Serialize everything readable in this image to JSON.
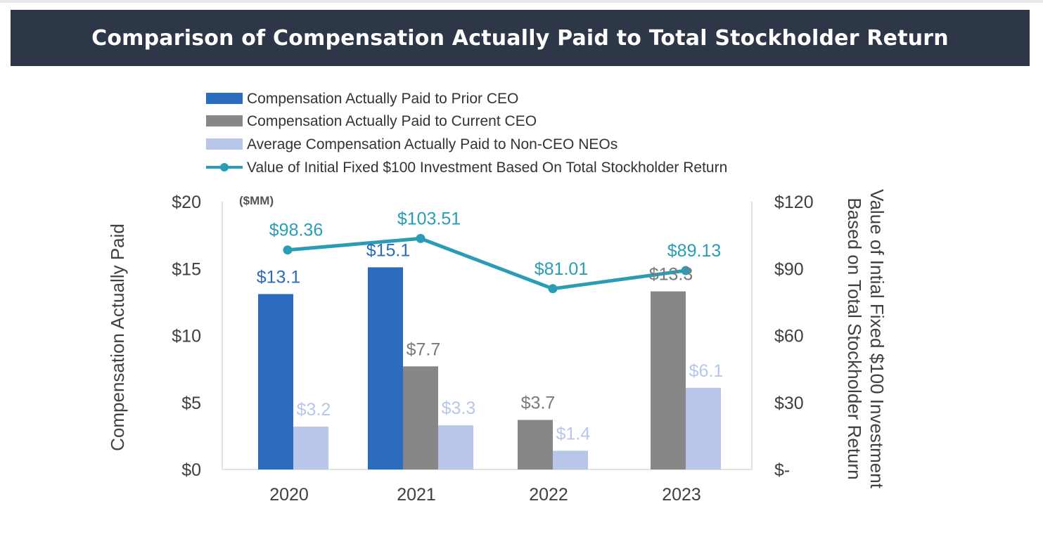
{
  "header": {
    "title": "Comparison of Compensation Actually Paid to Total Stockholder Return"
  },
  "colors": {
    "prior_ceo": "#2b6cbf",
    "current_ceo": "#878787",
    "non_ceo": "#b8c7e9",
    "tsr": "#2a9db5",
    "banner": "#2d3748"
  },
  "chart_data": {
    "type": "bar",
    "categories": [
      "2020",
      "2021",
      "2022",
      "2023"
    ],
    "unit_note": "($MM)",
    "ylabel": "Compensation Actually Paid",
    "y2label_line1": "Value of Intial Fixed $100 Investment",
    "y2label_line2": "Based on Total Stockholder Return",
    "ylim": [
      0,
      20
    ],
    "y2lim": [
      0,
      120
    ],
    "yticks": [
      "$0",
      "$5",
      "$10",
      "$15",
      "$20"
    ],
    "y2ticks": [
      "$-",
      "$30",
      "$60",
      "$90",
      "$120"
    ],
    "grid": false,
    "legend_position": "top",
    "series": [
      {
        "name": "Compensation Actually Paid to Prior CEO",
        "type": "bar",
        "axis": "left",
        "values": [
          13.1,
          15.1,
          null,
          null
        ],
        "labels": [
          "$13.1",
          "$15.1",
          "",
          ""
        ]
      },
      {
        "name": "Compensation Actually Paid to Current CEO",
        "type": "bar",
        "axis": "left",
        "values": [
          null,
          7.7,
          3.7,
          13.3
        ],
        "labels": [
          "",
          "$7.7",
          "$3.7",
          "$13.3"
        ]
      },
      {
        "name": "Average Compensation Actually Paid to Non-CEO NEOs",
        "type": "bar",
        "axis": "left",
        "values": [
          3.2,
          3.3,
          1.4,
          6.1
        ],
        "labels": [
          "$3.2",
          "$3.3",
          "$1.4",
          "$6.1"
        ]
      },
      {
        "name": "Value of Initial Fixed $100 Investment Based On Total Stockholder Return",
        "type": "line",
        "axis": "right",
        "values": [
          98.36,
          103.51,
          81.01,
          89.13
        ],
        "labels": [
          "$98.36",
          "$103.51",
          "$81.01",
          "$89.13"
        ]
      }
    ]
  }
}
